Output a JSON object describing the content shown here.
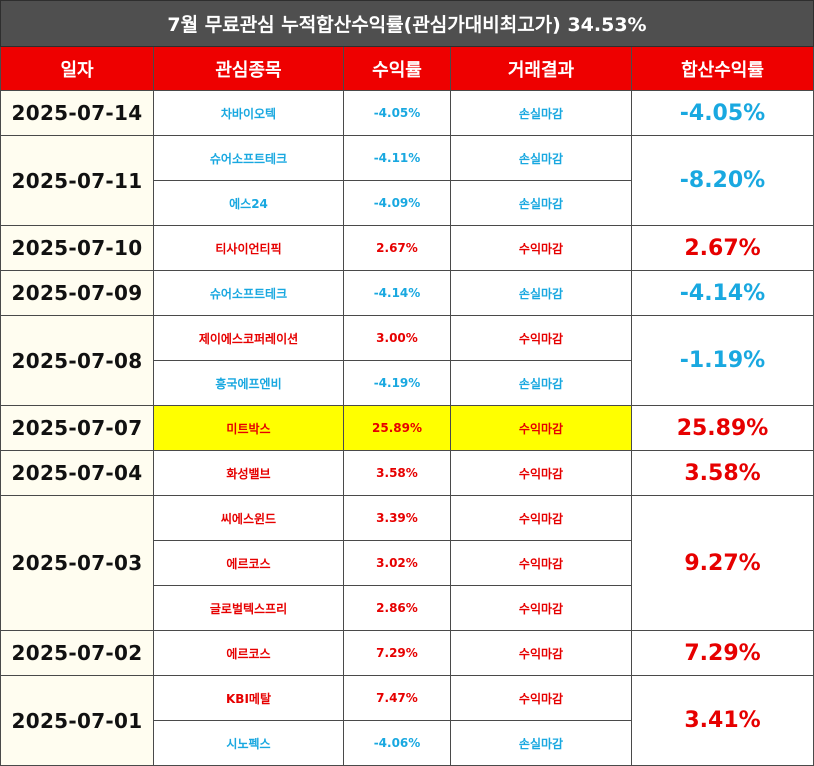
{
  "title": "7월 무료관심 누적합산수익률(관심가대비최고가) 34.53%",
  "headers": [
    "일자",
    "관심종목",
    "수익률",
    "거래결과",
    "합산수익률"
  ],
  "groups": [
    {
      "date": "2025-07-14",
      "total": "-4.05%",
      "total_sign": "neg",
      "items": [
        {
          "stock": "차바이오텍",
          "rate": "-4.05%",
          "result": "손실마감",
          "sign": "neg"
        }
      ]
    },
    {
      "date": "2025-07-11",
      "total": "-8.20%",
      "total_sign": "neg",
      "items": [
        {
          "stock": "슈어소프트테크",
          "rate": "-4.11%",
          "result": "손실마감",
          "sign": "neg"
        },
        {
          "stock": "에스24",
          "rate": "-4.09%",
          "result": "손실마감",
          "sign": "neg"
        }
      ]
    },
    {
      "date": "2025-07-10",
      "total": "2.67%",
      "total_sign": "pos",
      "items": [
        {
          "stock": "티사이언티픽",
          "rate": "2.67%",
          "result": "수익마감",
          "sign": "pos"
        }
      ]
    },
    {
      "date": "2025-07-09",
      "total": "-4.14%",
      "total_sign": "neg",
      "items": [
        {
          "stock": "슈어소프트테크",
          "rate": "-4.14%",
          "result": "손실마감",
          "sign": "neg"
        }
      ]
    },
    {
      "date": "2025-07-08",
      "total": "-1.19%",
      "total_sign": "neg",
      "items": [
        {
          "stock": "제이에스코퍼레이션",
          "rate": "3.00%",
          "result": "수익마감",
          "sign": "pos"
        },
        {
          "stock": "흥국에프엔비",
          "rate": "-4.19%",
          "result": "손실마감",
          "sign": "neg"
        }
      ]
    },
    {
      "date": "2025-07-07",
      "total": "25.89%",
      "total_sign": "pos",
      "highlight": true,
      "items": [
        {
          "stock": "미트박스",
          "rate": "25.89%",
          "result": "수익마감",
          "sign": "pos"
        }
      ]
    },
    {
      "date": "2025-07-04",
      "total": "3.58%",
      "total_sign": "pos",
      "items": [
        {
          "stock": "화성밸브",
          "rate": "3.58%",
          "result": "수익마감",
          "sign": "pos"
        }
      ]
    },
    {
      "date": "2025-07-03",
      "total": "9.27%",
      "total_sign": "pos",
      "items": [
        {
          "stock": "씨에스윈드",
          "rate": "3.39%",
          "result": "수익마감",
          "sign": "pos"
        },
        {
          "stock": "에르코스",
          "rate": "3.02%",
          "result": "수익마감",
          "sign": "pos"
        },
        {
          "stock": "글로벌텍스프리",
          "rate": "2.86%",
          "result": "수익마감",
          "sign": "pos"
        }
      ]
    },
    {
      "date": "2025-07-02",
      "total": "7.29%",
      "total_sign": "pos",
      "items": [
        {
          "stock": "에르코스",
          "rate": "7.29%",
          "result": "수익마감",
          "sign": "pos"
        }
      ]
    },
    {
      "date": "2025-07-01",
      "total": "3.41%",
      "total_sign": "pos",
      "items": [
        {
          "stock": "KBI메탈",
          "rate": "7.47%",
          "result": "수익마감",
          "sign": "pos"
        },
        {
          "stock": "시노펙스",
          "rate": "-4.06%",
          "result": "손실마감",
          "sign": "neg"
        }
      ]
    }
  ],
  "colors": {
    "positive": "#e60000",
    "negative": "#19a8e0",
    "header_bg": "#ee0000",
    "title_bg": "#4f4f4f",
    "highlight": "#ffff00"
  }
}
